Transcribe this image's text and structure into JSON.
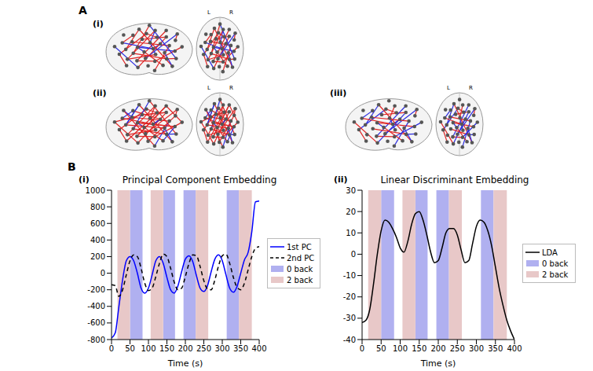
{
  "figure": {
    "panel_A": {
      "label": "A",
      "views": [
        "(i)",
        "(ii)",
        "(iii)"
      ],
      "orientation_labels": [
        "L",
        "R"
      ]
    },
    "panel_B": {
      "label": "B"
    }
  },
  "chart_data": [
    {
      "type": "line",
      "panel_label": "(i)",
      "title": "Principal Component Embedding",
      "x_label": "Time (s)",
      "x": [
        0,
        10,
        20,
        30,
        40,
        50,
        60,
        70,
        80,
        90,
        100,
        110,
        120,
        130,
        140,
        150,
        160,
        170,
        180,
        190,
        200,
        210,
        220,
        230,
        240,
        250,
        260,
        270,
        280,
        290,
        300,
        310,
        320,
        330,
        340,
        350,
        360,
        370,
        380,
        390,
        400
      ],
      "series": [
        {
          "name": "1st PC",
          "color": "#0000ff",
          "line_style": "solid",
          "values": [
            -780,
            -720,
            -400,
            -80,
            150,
            200,
            150,
            0,
            -180,
            -240,
            -180,
            -20,
            150,
            200,
            120,
            -50,
            -200,
            -240,
            -150,
            20,
            170,
            210,
            140,
            -30,
            -180,
            -220,
            -150,
            20,
            170,
            220,
            150,
            -20,
            -180,
            -230,
            -160,
            0,
            160,
            250,
            500,
            860,
            870
          ]
        },
        {
          "name": "2nd PC",
          "color": "#000000",
          "line_style": "dashed",
          "values": [
            -140,
            -150,
            -280,
            -200,
            -20,
            150,
            220,
            200,
            60,
            -120,
            -210,
            -180,
            -40,
            120,
            230,
            200,
            60,
            -110,
            -200,
            -180,
            -40,
            120,
            220,
            210,
            80,
            -90,
            -190,
            -200,
            -80,
            90,
            210,
            230,
            120,
            -50,
            -170,
            -200,
            -120,
            40,
            200,
            300,
            320
          ]
        }
      ],
      "bands": [
        {
          "name": "0 back",
          "color": "#b0b0f0",
          "intervals": [
            [
              50,
              84
            ],
            [
              140,
              172
            ],
            [
              195,
              228
            ],
            [
              312,
              345
            ]
          ]
        },
        {
          "name": "2 back",
          "color": "#e8c8c8",
          "intervals": [
            [
              16,
              50
            ],
            [
              106,
              140
            ],
            [
              228,
              262
            ],
            [
              345,
              380
            ]
          ]
        }
      ],
      "xlim": [
        0,
        400
      ],
      "xticks": [
        0,
        50,
        100,
        150,
        200,
        250,
        300,
        350,
        400
      ],
      "ylim": [
        -800,
        1000
      ],
      "yticks": [
        -800,
        -600,
        -400,
        -200,
        0,
        200,
        400,
        600,
        800,
        1000
      ],
      "legend": "right"
    },
    {
      "type": "line",
      "panel_label": "(ii)",
      "title": "Linear Discriminant Embedding",
      "x_label": "Time (s)",
      "x": [
        0,
        10,
        20,
        30,
        40,
        50,
        60,
        70,
        80,
        90,
        100,
        110,
        120,
        130,
        140,
        150,
        160,
        170,
        180,
        190,
        200,
        210,
        220,
        230,
        240,
        250,
        260,
        270,
        280,
        290,
        300,
        310,
        320,
        330,
        340,
        350,
        360,
        370,
        380,
        390,
        400
      ],
      "series": [
        {
          "name": "LDA",
          "color": "#000000",
          "line_style": "solid",
          "values": [
            -32,
            -31,
            -26,
            -14,
            0,
            11,
            16,
            15,
            12,
            8,
            3,
            1,
            6,
            14,
            19,
            20,
            16,
            9,
            1,
            -4,
            -3,
            3,
            10,
            12,
            12,
            9,
            2,
            -4,
            -3,
            5,
            13,
            16,
            15,
            11,
            4,
            -6,
            -16,
            -24,
            -31,
            -36,
            -40
          ]
        }
      ],
      "bands": [
        {
          "name": "0 back",
          "color": "#b0b0f0",
          "intervals": [
            [
              50,
              84
            ],
            [
              140,
              172
            ],
            [
              195,
              228
            ],
            [
              312,
              345
            ]
          ]
        },
        {
          "name": "2 back",
          "color": "#e8c8c8",
          "intervals": [
            [
              16,
              50
            ],
            [
              106,
              140
            ],
            [
              228,
              262
            ],
            [
              345,
              380
            ]
          ]
        }
      ],
      "xlim": [
        0,
        400
      ],
      "xticks": [
        0,
        50,
        100,
        150,
        200,
        250,
        300,
        350,
        400
      ],
      "ylim": [
        -40,
        30
      ],
      "yticks": [
        -40,
        -30,
        -20,
        -10,
        0,
        10,
        20,
        30
      ],
      "legend": "right"
    }
  ]
}
